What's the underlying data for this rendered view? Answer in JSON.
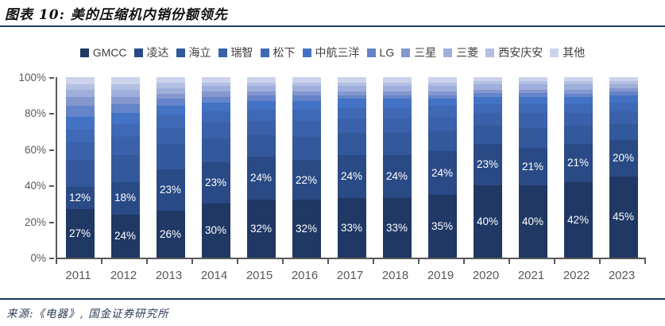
{
  "header": {
    "title": "图表 10: 美的压缩机内销份额领先"
  },
  "footer": {
    "source": "来源:《电器》, 国金证券研究所"
  },
  "chart_data": {
    "type": "bar",
    "stacked": true,
    "unit": "%",
    "title": "美的压缩机内销份额领先",
    "xlabel": "",
    "ylabel": "",
    "ylim": [
      0,
      100
    ],
    "yticks": [
      {
        "value": 0,
        "label": "0%"
      },
      {
        "value": 20,
        "label": "20%"
      },
      {
        "value": 40,
        "label": "40%"
      },
      {
        "value": 60,
        "label": "60%"
      },
      {
        "value": 80,
        "label": "80%"
      },
      {
        "value": 100,
        "label": "100%"
      }
    ],
    "grid": false,
    "legend_position": "top",
    "categories": [
      "2011",
      "2012",
      "2013",
      "2014",
      "2015",
      "2016",
      "2017",
      "2018",
      "2019",
      "2020",
      "2021",
      "2022",
      "2023"
    ],
    "series": [
      {
        "name": "GMCC",
        "color": "#1f3864",
        "labeled": true,
        "values": [
          27,
          24,
          26,
          30,
          32,
          32,
          33,
          33,
          35,
          40,
          40,
          42,
          45
        ]
      },
      {
        "name": "凌达",
        "color": "#2a4a85",
        "labeled": true,
        "values": [
          12,
          18,
          23,
          23,
          24,
          22,
          24,
          24,
          24,
          23,
          21,
          21,
          20
        ]
      },
      {
        "name": "海立",
        "color": "#33589b",
        "labeled": false,
        "values": [
          15,
          15,
          14,
          13,
          12,
          13,
          12,
          12,
          11,
          10,
          11,
          10,
          9
        ]
      },
      {
        "name": "瑞智",
        "color": "#3a61a9",
        "labeled": false,
        "values": [
          10,
          10,
          9,
          9,
          8,
          9,
          8,
          8,
          8,
          7,
          8,
          7,
          7
        ]
      },
      {
        "name": "松下",
        "color": "#3f69b5",
        "labeled": false,
        "values": [
          7,
          7,
          7,
          6,
          6,
          6,
          6,
          6,
          6,
          5,
          5,
          5,
          5
        ]
      },
      {
        "name": "中航三洋",
        "color": "#4472c4",
        "labeled": false,
        "values": [
          7,
          6,
          5,
          5,
          5,
          5,
          5,
          5,
          4,
          4,
          4,
          4,
          4
        ]
      },
      {
        "name": "LG",
        "color": "#6584c9",
        "labeled": false,
        "values": [
          6,
          5,
          4,
          3,
          3,
          3,
          2,
          2,
          2,
          2,
          2,
          2,
          2
        ]
      },
      {
        "name": "三星",
        "color": "#8497cf",
        "labeled": false,
        "values": [
          5,
          4,
          3,
          3,
          2,
          2,
          2,
          2,
          2,
          2,
          2,
          2,
          2
        ]
      },
      {
        "name": "三菱",
        "color": "#9fafdb",
        "labeled": false,
        "values": [
          4,
          4,
          3,
          3,
          3,
          3,
          3,
          3,
          3,
          3,
          3,
          3,
          2
        ]
      },
      {
        "name": "西安庆安",
        "color": "#b3bfe3",
        "labeled": false,
        "values": [
          3,
          3,
          3,
          2,
          2,
          2,
          2,
          2,
          2,
          2,
          2,
          2,
          2
        ]
      },
      {
        "name": "其他",
        "color": "#ccd4ec",
        "labeled": false,
        "values": [
          4,
          4,
          3,
          3,
          3,
          3,
          3,
          3,
          3,
          2,
          2,
          2,
          2
        ]
      }
    ],
    "bar_label_color": "#ffffff"
  },
  "layout_colors": {
    "divider": "#1f3864",
    "axis": "#595959",
    "tick_label": "#595959",
    "legend_text": "#404040"
  }
}
